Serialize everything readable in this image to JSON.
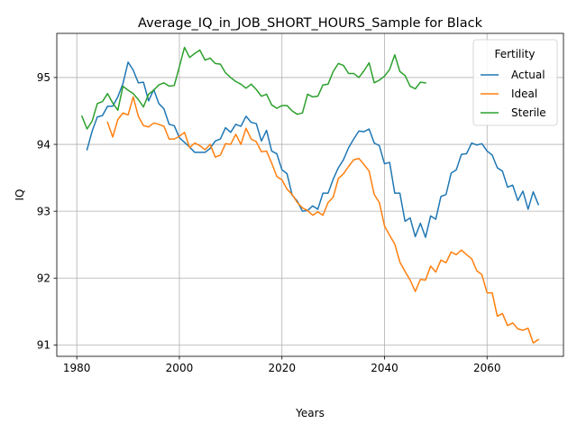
{
  "chart_data": {
    "type": "line",
    "title": "Average_IQ_in_JOB_SHORT_HOURS_Sample for Black",
    "xlabel": "Years",
    "ylabel": "IQ",
    "xlim": [
      1976.1,
      2074.9
    ],
    "ylim": [
      90.83,
      95.66
    ],
    "xticks": [
      1980,
      2000,
      2020,
      2040,
      2060
    ],
    "xtick_labels": [
      "1980",
      "2000",
      "2020",
      "2040",
      "2060"
    ],
    "yticks": [
      91,
      92,
      93,
      94,
      95
    ],
    "ytick_labels": [
      "91",
      "92",
      "93",
      "94",
      "95"
    ],
    "grid": true,
    "legend": {
      "title": "Fertility",
      "placement": "top-right"
    },
    "series": [
      {
        "name": "Actual",
        "color": "#1f77b4",
        "x_start": 1982,
        "values": [
          93.92,
          94.2,
          94.41,
          94.43,
          94.57,
          94.57,
          94.71,
          94.91,
          95.23,
          95.11,
          94.92,
          94.93,
          94.65,
          94.82,
          94.61,
          94.53,
          94.3,
          94.28,
          94.1,
          94.03,
          93.96,
          93.88,
          93.88,
          93.88,
          93.94,
          94.05,
          94.08,
          94.25,
          94.18,
          94.3,
          94.27,
          94.42,
          94.33,
          94.31,
          94.05,
          94.21,
          93.9,
          93.86,
          93.62,
          93.56,
          93.24,
          93.15,
          93.0,
          93.01,
          93.08,
          93.03,
          93.27,
          93.27,
          93.48,
          93.65,
          93.77,
          93.95,
          94.08,
          94.2,
          94.19,
          94.23,
          94.02,
          93.98,
          93.71,
          93.73,
          93.27,
          93.27,
          92.85,
          92.9,
          92.62,
          92.82,
          92.61,
          92.93,
          92.88,
          93.22,
          93.25,
          93.57,
          93.62,
          93.85,
          93.86,
          94.02,
          93.99,
          94.01,
          93.9,
          93.84,
          93.65,
          93.6,
          93.36,
          93.39,
          93.16,
          93.3,
          93.03,
          93.29,
          93.1
        ]
      },
      {
        "name": "Ideal",
        "color": "#ff7f0e",
        "x_start": 1986,
        "values": [
          94.33,
          94.11,
          94.37,
          94.47,
          94.44,
          94.71,
          94.42,
          94.28,
          94.26,
          94.32,
          94.3,
          94.27,
          94.08,
          94.08,
          94.12,
          94.18,
          93.95,
          94.02,
          93.98,
          93.92,
          94.0,
          93.81,
          93.84,
          94.01,
          94.0,
          94.15,
          94.0,
          94.24,
          94.08,
          94.04,
          93.89,
          93.9,
          93.72,
          93.52,
          93.47,
          93.33,
          93.25,
          93.13,
          93.05,
          93.01,
          92.94,
          92.99,
          92.94,
          93.13,
          93.21,
          93.49,
          93.56,
          93.67,
          93.77,
          93.79,
          93.7,
          93.6,
          93.25,
          93.13,
          92.78,
          92.64,
          92.51,
          92.24,
          92.1,
          91.97,
          91.8,
          91.98,
          91.97,
          92.18,
          92.09,
          92.27,
          92.23,
          92.39,
          92.35,
          92.42,
          92.35,
          92.29,
          92.11,
          92.05,
          91.78,
          91.78,
          91.43,
          91.47,
          91.29,
          91.33,
          91.24,
          91.22,
          91.25,
          91.03,
          91.08
        ]
      },
      {
        "name": "Sterile",
        "color": "#2ca02c",
        "x_start": 1981,
        "values": [
          94.42,
          94.23,
          94.35,
          94.61,
          94.64,
          94.76,
          94.62,
          94.51,
          94.87,
          94.81,
          94.76,
          94.67,
          94.56,
          94.75,
          94.81,
          94.89,
          94.92,
          94.87,
          94.88,
          95.16,
          95.45,
          95.3,
          95.36,
          95.41,
          95.26,
          95.29,
          95.21,
          95.2,
          95.07,
          95.0,
          94.94,
          94.9,
          94.84,
          94.9,
          94.82,
          94.72,
          94.75,
          94.59,
          94.54,
          94.58,
          94.58,
          94.5,
          94.45,
          94.47,
          94.75,
          94.71,
          94.72,
          94.89,
          94.9,
          95.09,
          95.21,
          95.18,
          95.06,
          95.06,
          95.0,
          95.1,
          95.22,
          94.92,
          94.96,
          95.02,
          95.12,
          95.34,
          95.09,
          95.03,
          94.87,
          94.83,
          94.93,
          94.92
        ]
      }
    ]
  }
}
